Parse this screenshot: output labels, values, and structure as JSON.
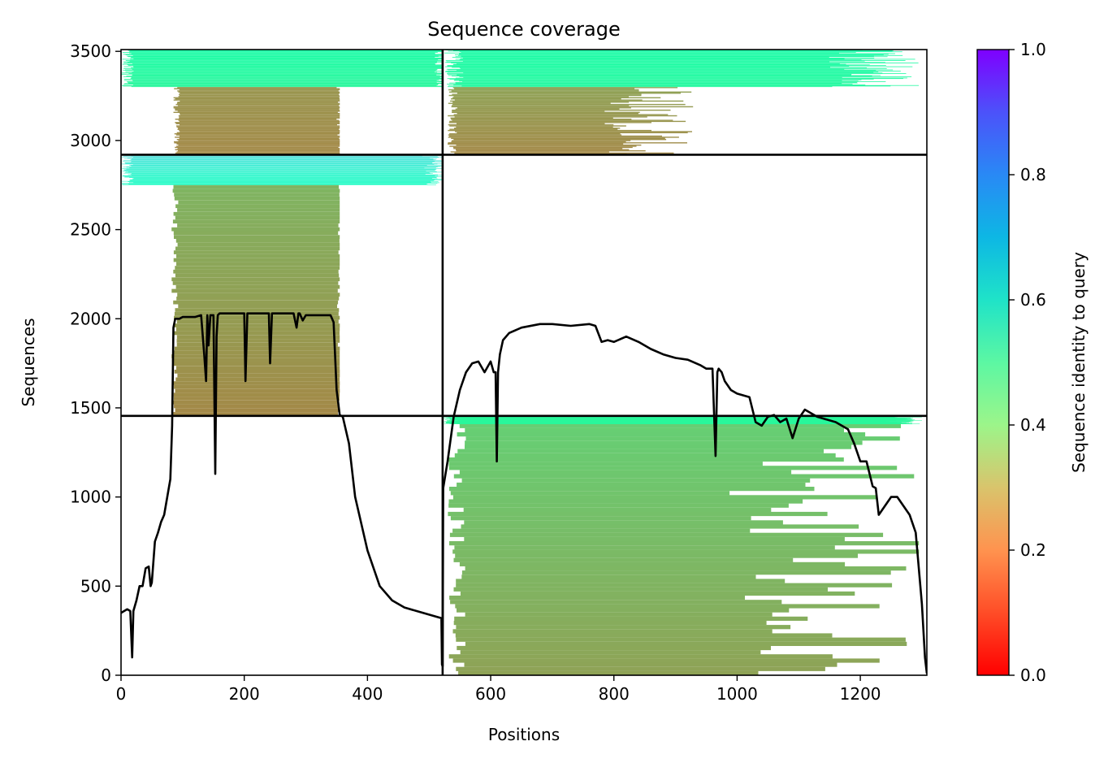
{
  "chart_data": {
    "type": "heatmap",
    "title": "Sequence coverage",
    "xlabel": "Positions",
    "ylabel": "Sequences",
    "colorbar_label": "Sequence identity to query",
    "colormap": "rainbow_r",
    "xlim": [
      0,
      1308
    ],
    "ylim": [
      0,
      3510
    ],
    "clim": [
      0,
      1.0
    ],
    "x_ticks": [
      0,
      200,
      400,
      600,
      800,
      1000,
      1200
    ],
    "y_ticks": [
      0,
      500,
      1000,
      1500,
      2000,
      2500,
      3000,
      3500
    ],
    "colorbar_ticks": [
      0.0,
      0.2,
      0.4,
      0.6,
      0.8,
      1.0
    ],
    "domain_boundaries": {
      "positions": [
        522
      ],
      "sequences": [
        1455,
        2920
      ]
    },
    "blocks": [
      {
        "x": [
          522,
          1308
        ],
        "y": [
          0,
          1455
        ],
        "bands": [
          {
            "y": [
              0,
              1410
            ],
            "from": 530,
            "to": 1300,
            "identity_bottom": 0.22,
            "identity_top": 0.3,
            "sparse_after": 1000
          },
          {
            "y": [
              1410,
              1455
            ],
            "from": 522,
            "to": 1300,
            "identity_bottom": 0.42,
            "identity_top": 0.42,
            "sparse_after": 1250
          }
        ]
      },
      {
        "x": [
          0,
          522
        ],
        "y": [
          1455,
          2920
        ],
        "bands": [
          {
            "y": [
              1455,
              2750
            ],
            "from": 82,
            "to": 355,
            "identity_bottom": 0.18,
            "identity_top": 0.25,
            "sparse_after": 360
          },
          {
            "y": [
              2750,
              2920
            ],
            "from": 0,
            "to": 522,
            "identity_bottom": 0.55,
            "identity_top": 0.66,
            "sparse_after": 500
          }
        ]
      },
      {
        "x": [
          0,
          522
        ],
        "y": [
          2920,
          3510
        ],
        "bands": [
          {
            "y": [
              2920,
              3300
            ],
            "from": 85,
            "to": 355,
            "identity_bottom": 0.18,
            "identity_top": 0.2,
            "sparse_after": 360
          },
          {
            "y": [
              3300,
              3510
            ],
            "from": 0,
            "to": 522,
            "identity_bottom": 0.42,
            "identity_top": 0.45,
            "sparse_after": 520
          }
        ]
      },
      {
        "x": [
          522,
          1308
        ],
        "y": [
          2920,
          3510
        ],
        "bands": [
          {
            "y": [
              2920,
              3300
            ],
            "from": 530,
            "to": 930,
            "identity_bottom": 0.18,
            "identity_top": 0.22,
            "sparse_after": 790
          },
          {
            "y": [
              3300,
              3510
            ],
            "from": 525,
            "to": 1295,
            "identity_bottom": 0.43,
            "identity_top": 0.45,
            "sparse_after": 1150
          }
        ]
      }
    ],
    "coverage_line": {
      "x": [
        0,
        10,
        15,
        18,
        20,
        25,
        30,
        35,
        40,
        45,
        48,
        50,
        55,
        60,
        65,
        70,
        75,
        80,
        83,
        85,
        88,
        92,
        95,
        100,
        110,
        120,
        130,
        135,
        138,
        140,
        142,
        145,
        150,
        153,
        155,
        157,
        160,
        170,
        180,
        200,
        202,
        205,
        210,
        220,
        230,
        240,
        242,
        245,
        250,
        260,
        270,
        280,
        285,
        288,
        290,
        295,
        300,
        320,
        340,
        345,
        350,
        355,
        360,
        370,
        380,
        390,
        400,
        420,
        440,
        460,
        480,
        500,
        520,
        521,
        522,
        523,
        530,
        540,
        550,
        560,
        570,
        580,
        590,
        600,
        605,
        608,
        610,
        612,
        615,
        620,
        630,
        650,
        680,
        700,
        730,
        760,
        770,
        780,
        790,
        800,
        820,
        840,
        860,
        880,
        900,
        920,
        940,
        950,
        960,
        965,
        968,
        970,
        975,
        980,
        990,
        1000,
        1020,
        1030,
        1040,
        1050,
        1060,
        1070,
        1080,
        1090,
        1100,
        1110,
        1120,
        1130,
        1140,
        1160,
        1180,
        1190,
        1200,
        1210,
        1220,
        1225,
        1230,
        1240,
        1250,
        1260,
        1270,
        1280,
        1290,
        1300,
        1305,
        1308
      ],
      "y": [
        350,
        370,
        360,
        100,
        360,
        420,
        500,
        500,
        600,
        610,
        500,
        520,
        750,
        800,
        860,
        900,
        1000,
        1100,
        1400,
        1950,
        2000,
        2000,
        2000,
        2010,
        2010,
        2010,
        2020,
        1800,
        1650,
        2020,
        1850,
        2020,
        2020,
        1130,
        1900,
        2020,
        2030,
        2030,
        2030,
        2030,
        1650,
        2030,
        2030,
        2030,
        2030,
        2030,
        1750,
        2030,
        2030,
        2030,
        2030,
        2030,
        1950,
        2030,
        2030,
        1990,
        2020,
        2020,
        2020,
        1980,
        1600,
        1460,
        1450,
        1300,
        1000,
        850,
        700,
        500,
        420,
        380,
        360,
        340,
        320,
        60,
        50,
        1050,
        1200,
        1450,
        1600,
        1700,
        1750,
        1760,
        1700,
        1760,
        1700,
        1700,
        1200,
        1700,
        1800,
        1880,
        1920,
        1950,
        1970,
        1970,
        1960,
        1970,
        1960,
        1870,
        1880,
        1870,
        1900,
        1870,
        1830,
        1800,
        1780,
        1770,
        1740,
        1720,
        1720,
        1230,
        1700,
        1720,
        1700,
        1650,
        1600,
        1580,
        1560,
        1420,
        1400,
        1450,
        1460,
        1420,
        1440,
        1330,
        1440,
        1490,
        1470,
        1450,
        1440,
        1420,
        1380,
        1300,
        1200,
        1200,
        1060,
        1050,
        900,
        950,
        1000,
        1000,
        950,
        900,
        800,
        400,
        100,
        10
      ]
    }
  }
}
